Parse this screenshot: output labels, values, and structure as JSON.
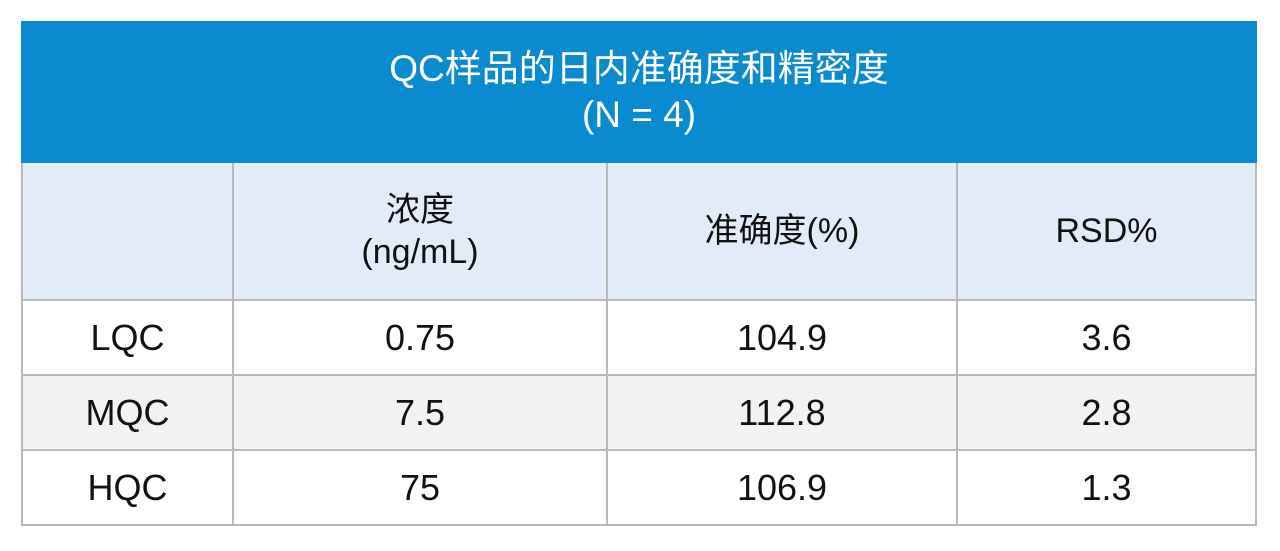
{
  "title": {
    "line1": "QC样品的日内准确度和精密度",
    "line2": "(N = 4)"
  },
  "columns": [
    {
      "line1": "",
      "line2": ""
    },
    {
      "line1": "浓度",
      "line2": "(ng/mL)"
    },
    {
      "line1": "准确度(%)",
      "line2": ""
    },
    {
      "line1": "RSD%",
      "line2": ""
    }
  ],
  "rows": [
    {
      "label": "LQC",
      "concentration": "0.75",
      "accuracy": "104.9",
      "rsd": "3.6"
    },
    {
      "label": "MQC",
      "concentration": "7.5",
      "accuracy": "112.8",
      "rsd": "2.8"
    },
    {
      "label": "HQC",
      "concentration": "75",
      "accuracy": "106.9",
      "rsd": "1.3"
    }
  ],
  "colors": {
    "title_bg": "#0a8acf",
    "header_bg": "#e1ecf8",
    "alt_row_bg": "#f2f2f2",
    "border": "#b9b9b9"
  }
}
